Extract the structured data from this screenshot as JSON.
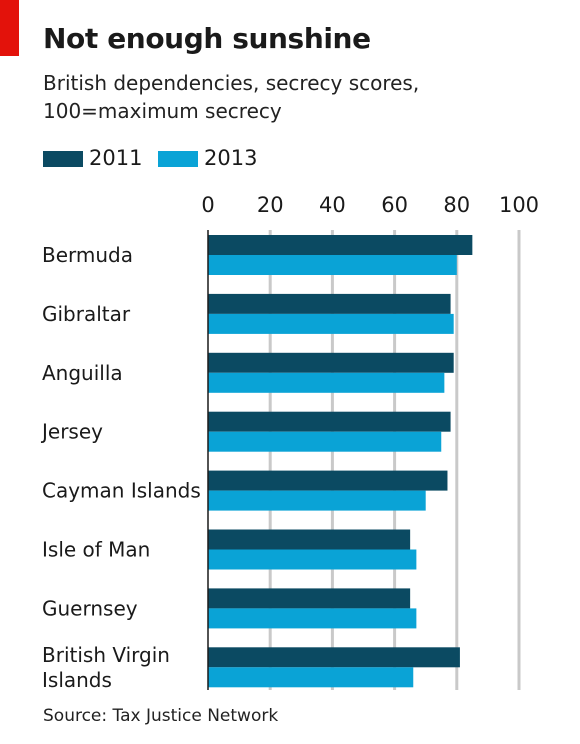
{
  "chart_data": {
    "type": "bar",
    "orientation": "horizontal",
    "title": "Not enough sunshine",
    "subtitle": "British dependencies, secrecy scores, 100=maximum secrecy",
    "source": "Source: Tax Justice Network",
    "categories": [
      "Bermuda",
      "Gibraltar",
      "Anguilla",
      "Jersey",
      "Cayman Islands",
      "Isle of Man",
      "Guernsey",
      "British Virgin Islands"
    ],
    "category_lines": [
      [
        "Bermuda"
      ],
      [
        "Gibraltar"
      ],
      [
        "Anguilla"
      ],
      [
        "Jersey"
      ],
      [
        "Cayman Islands"
      ],
      [
        "Isle of Man"
      ],
      [
        "Guernsey"
      ],
      [
        "British Virgin",
        "Islands"
      ]
    ],
    "series": [
      {
        "name": "2011",
        "color": "#0b4a62",
        "values": [
          85,
          78,
          79,
          78,
          77,
          65,
          65,
          81
        ]
      },
      {
        "name": "2013",
        "color": "#0aa3d6",
        "values": [
          80,
          79,
          76,
          75,
          70,
          67,
          67,
          66
        ]
      }
    ],
    "xlim": [
      0,
      100
    ],
    "xticks": [
      0,
      20,
      40,
      60,
      80,
      100
    ],
    "xaxis_position": "top",
    "grid": true,
    "legend_position": "top-left"
  }
}
